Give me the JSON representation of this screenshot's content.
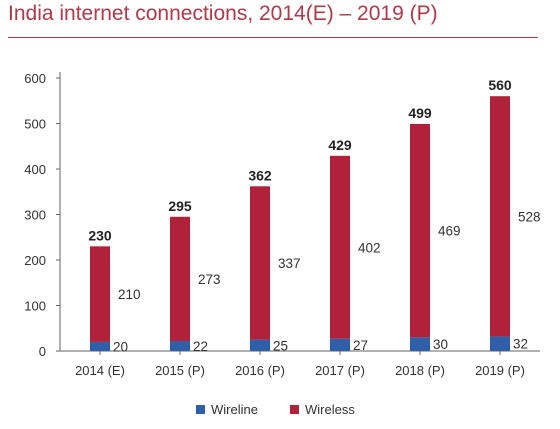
{
  "chart_data": {
    "type": "bar",
    "stacked": true,
    "title": "India internet connections, 2014(E) – 2019 (P)",
    "categories": [
      "2014 (E)",
      "2015 (P)",
      "2016 (P)",
      "2017 (P)",
      "2018  (P)",
      "2019  (P)"
    ],
    "series": [
      {
        "name": "Wireline",
        "values": [
          20,
          22,
          25,
          27,
          30,
          32
        ],
        "color": "#2e5fa8"
      },
      {
        "name": "Wireless",
        "values": [
          210,
          273,
          337,
          402,
          469,
          528
        ],
        "color": "#b0223a"
      }
    ],
    "totals": [
      230,
      295,
      362,
      429,
      499,
      560
    ],
    "ylim": [
      0,
      600
    ],
    "yticks": [
      0,
      100,
      200,
      300,
      400,
      500,
      600
    ],
    "grid": false,
    "legend_position": "bottom"
  },
  "colors": {
    "title": "#b0394a",
    "axis": "#666666"
  }
}
